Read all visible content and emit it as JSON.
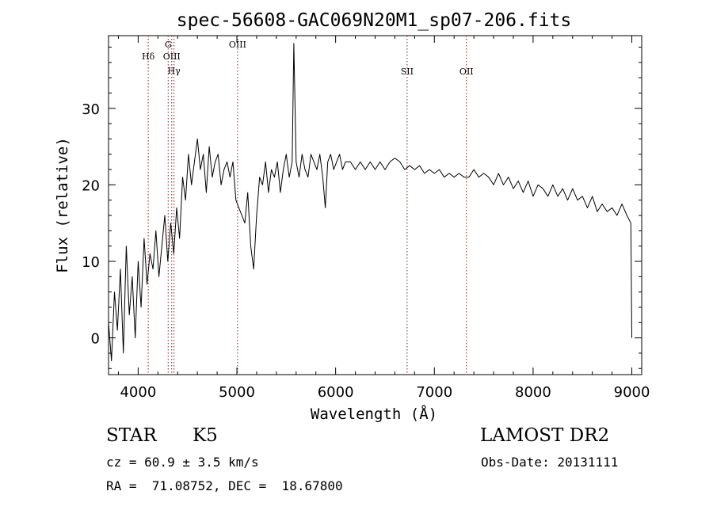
{
  "chart_data": {
    "type": "line",
    "title": "spec-56608-GAC069N20M1_sp07-206.fits",
    "xlabel": "Wavelength (Å)",
    "ylabel": "Flux (relative)",
    "xlim": [
      3700,
      9100
    ],
    "ylim": [
      -4.8,
      39.5
    ],
    "xticks": [
      4000,
      5000,
      6000,
      7000,
      8000,
      9000
    ],
    "yticks": [
      0,
      10,
      20,
      30
    ],
    "grid": false,
    "line_color": "#000000",
    "marker_color": "#8b1a1a",
    "series": [
      {
        "x": [
          3700,
          3730,
          3760,
          3790,
          3820,
          3850,
          3880,
          3910,
          3940,
          3970,
          4000,
          4030,
          4060,
          4090,
          4120,
          4150,
          4180,
          4210,
          4240,
          4270,
          4300,
          4330,
          4360,
          4390,
          4420,
          4450,
          4480,
          4510,
          4540,
          4570,
          4600,
          4630,
          4660,
          4690,
          4720,
          4750,
          4780,
          4810,
          4840,
          4870,
          4900,
          4930,
          4960,
          4990,
          5020,
          5050,
          5080,
          5110,
          5140,
          5170,
          5200,
          5230,
          5260,
          5290,
          5320,
          5350,
          5380,
          5410,
          5440,
          5470,
          5500,
          5530,
          5560,
          5577,
          5600,
          5630,
          5660,
          5690,
          5720,
          5750,
          5780,
          5810,
          5840,
          5870,
          5895,
          5920,
          5950,
          5980,
          6010,
          6040,
          6070,
          6100,
          6150,
          6200,
          6250,
          6300,
          6350,
          6400,
          6450,
          6500,
          6550,
          6600,
          6650,
          6700,
          6750,
          6800,
          6850,
          6900,
          6950,
          7000,
          7050,
          7100,
          7150,
          7200,
          7250,
          7300,
          7350,
          7400,
          7450,
          7500,
          7550,
          7600,
          7650,
          7700,
          7750,
          7800,
          7850,
          7900,
          7950,
          8000,
          8050,
          8100,
          8150,
          8200,
          8250,
          8300,
          8350,
          8400,
          8450,
          8500,
          8550,
          8600,
          8650,
          8700,
          8750,
          8800,
          8850,
          8900,
          8950,
          8990,
          9000
        ],
        "y": [
          2,
          -3,
          6,
          1,
          9,
          -2,
          12,
          3,
          8,
          0,
          10,
          4,
          13,
          7,
          11,
          9,
          14,
          8,
          12,
          16,
          10,
          15,
          11,
          17,
          13,
          21,
          18,
          24,
          20,
          23,
          26,
          22,
          24,
          19,
          25,
          21,
          23,
          24,
          20,
          22,
          23,
          21,
          23,
          18,
          17,
          16,
          15,
          19,
          12,
          9,
          16,
          21,
          20,
          23,
          19,
          22,
          21,
          23,
          19,
          22,
          24,
          21,
          23,
          38.5,
          23,
          21,
          24,
          22,
          21,
          24,
          23,
          22,
          24,
          21,
          17,
          23,
          24,
          22,
          23,
          24,
          22,
          23,
          23,
          22,
          23,
          22,
          23,
          22,
          23,
          22,
          23,
          23.5,
          23,
          22,
          22.5,
          22,
          22.5,
          21.5,
          22,
          21.5,
          22,
          21,
          21.5,
          21,
          21.5,
          21,
          21,
          22,
          21,
          21.5,
          21,
          20,
          21.5,
          20,
          21,
          19.5,
          20.5,
          19,
          20.5,
          18.5,
          20,
          19.5,
          18.5,
          20,
          18.5,
          19.5,
          18,
          19.5,
          18,
          18.5,
          17,
          18.5,
          16.5,
          17.5,
          16.5,
          17,
          16,
          17.5,
          16,
          15,
          0
        ]
      }
    ],
    "lines": [
      {
        "label": "Hδ",
        "x": 4102
      },
      {
        "label": "G",
        "x": 4304
      },
      {
        "label": "OIII",
        "x": 4340
      },
      {
        "label": "Hγ",
        "x": 4363
      },
      {
        "label": "OIII",
        "x": 5007
      },
      {
        "label": "SII",
        "x": 6724
      },
      {
        "label": "OII",
        "x": 7325
      }
    ]
  },
  "info": {
    "class": "STAR",
    "subclass": "K5",
    "survey": "LAMOST DR2",
    "cz": "cz = 60.9 ± 3.5 km/s",
    "obs_date": "Obs-Date: 20131111",
    "radec": "RA =  71.08752, DEC =  18.67800"
  }
}
